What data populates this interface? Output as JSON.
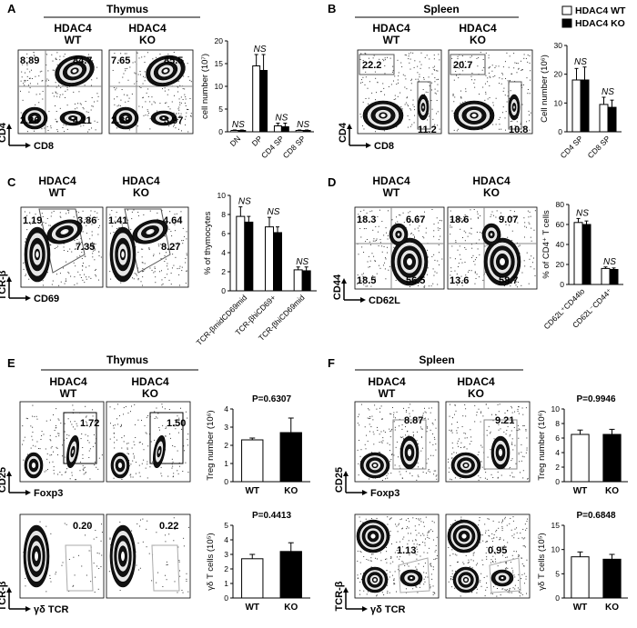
{
  "panels": [
    {
      "letter": "A",
      "title": "Thymus",
      "groups": [
        "HDAC4\nWT",
        "HDAC4\nKO"
      ],
      "axes": {
        "y": "CD4",
        "x": "CD8"
      },
      "plots": [
        {
          "ul": "8.89",
          "ur": "84.7",
          "ll": "2.26",
          "lr": "4.11"
        },
        {
          "ul": "7.65",
          "ur": "85.5",
          "ll": "2.89",
          "lr": "3.97"
        }
      ],
      "chart": {
        "ylabel": "cell number (10⁷)",
        "ylim": [
          0,
          20
        ],
        "yticks": [
          0,
          5,
          10,
          15,
          20
        ],
        "categories": [
          "DN",
          "DP",
          "CD4 SP",
          "CD8 SP"
        ],
        "wt": [
          0.3,
          14.5,
          1.3,
          0.3
        ],
        "ko": [
          0.3,
          13.5,
          1.1,
          0.3
        ],
        "wt_err": [
          0.1,
          2.5,
          0.6,
          0.1
        ],
        "ko_err": [
          0.1,
          3.5,
          0.8,
          0.1
        ],
        "sig": [
          "NS",
          "NS",
          "NS",
          "NS"
        ]
      }
    },
    {
      "letter": "B",
      "title": "Spleen",
      "groups": [
        "HDAC4\nWT",
        "HDAC4\nKO"
      ],
      "axes": {
        "y": "CD4",
        "x": "CD8"
      },
      "plots": [
        {
          "ul": "22.2",
          "lr": "11.2"
        },
        {
          "ul": "20.7",
          "lr": "10.8"
        }
      ],
      "chart": {
        "ylabel": "Cell number (10⁶)",
        "ylim": [
          0,
          30
        ],
        "yticks": [
          0,
          10,
          20,
          30
        ],
        "categories": [
          "CD4 SP",
          "CD8 SP"
        ],
        "wt": [
          18,
          9.5
        ],
        "ko": [
          18,
          8.5
        ],
        "wt_err": [
          4,
          2.5
        ],
        "ko_err": [
          4.5,
          2.5
        ],
        "sig": [
          "NS",
          "NS"
        ]
      }
    },
    {
      "letter": "C",
      "groups": [
        "HDAC4\nWT",
        "HDAC4\nKO"
      ],
      "axes": {
        "y": "TCR-β",
        "x": "CD69"
      },
      "plots": [
        {
          "ul": "1.19",
          "ur": "3.86",
          "mid": "7.35"
        },
        {
          "ul": "1.41",
          "ur": "4.64",
          "mid": "8.27"
        }
      ],
      "chart": {
        "ylabel": "% of thymocytes",
        "ylim": [
          0,
          10
        ],
        "yticks": [
          0,
          2,
          4,
          6,
          8,
          10
        ],
        "categories": [
          "TCR-βmidCD69mid",
          "TCR-βhiCD69+",
          "TCR-βhiCD69mid"
        ],
        "wt": [
          7.8,
          6.7,
          2.2
        ],
        "ko": [
          7.2,
          6.1,
          2.1
        ],
        "wt_err": [
          1.0,
          1.0,
          0.3
        ],
        "ko_err": [
          0.6,
          0.6,
          0.4
        ],
        "sig": [
          "NS",
          "NS",
          "NS"
        ]
      }
    },
    {
      "letter": "D",
      "groups": [
        "HDAC4\nWT",
        "HDAC4\nKO"
      ],
      "axes": {
        "y": "CD44",
        "x": "CD62L"
      },
      "plots": [
        {
          "ul": "18.3",
          "ur": "6.67",
          "ll": "18.5",
          "lr": "56.5"
        },
        {
          "ul": "18.6",
          "ur": "9.07",
          "ll": "13.6",
          "lr": "58.7"
        }
      ],
      "chart": {
        "ylabel": "% of CD4⁺ T cells",
        "ylim": [
          0,
          80
        ],
        "yticks": [
          0,
          20,
          40,
          60,
          80
        ],
        "categories": [
          "CD62L⁺CD44lo",
          "CD62L⁻CD44⁺"
        ],
        "wt": [
          62,
          16
        ],
        "ko": [
          60,
          15
        ],
        "wt_err": [
          4,
          1.5
        ],
        "ko_err": [
          3.5,
          1.5
        ],
        "sig": [
          "NS",
          "NS"
        ]
      }
    },
    {
      "letter": "E",
      "title": "Thymus",
      "groups": [
        "HDAC4\nWT",
        "HDAC4\nKO"
      ],
      "axes_top": {
        "y": "CD25",
        "x": "Foxp3"
      },
      "axes_bottom": {
        "y": "TCR-β",
        "x": "γδ TCR"
      },
      "plots_top": [
        "1.72",
        "1.50"
      ],
      "plots_bottom": [
        "0.20",
        "0.22"
      ],
      "chart_top": {
        "ylabel": "Treg number (10⁶)",
        "ylim": [
          0,
          4
        ],
        "yticks": [
          0,
          1,
          2,
          3,
          4
        ],
        "categories": [
          "WT",
          "KO"
        ],
        "values": [
          2.3,
          2.7
        ],
        "err": [
          0.1,
          0.8
        ],
        "p": "P=0.6307"
      },
      "chart_bottom": {
        "ylabel": "γδ T cells (10⁵)",
        "ylim": [
          0,
          5
        ],
        "yticks": [
          0,
          1,
          2,
          3,
          4,
          5
        ],
        "categories": [
          "WT",
          "KO"
        ],
        "values": [
          2.7,
          3.2
        ],
        "err": [
          0.3,
          0.6
        ],
        "p": "P=0.4413"
      }
    },
    {
      "letter": "F",
      "title": "Spleen",
      "groups": [
        "HDAC4\nWT",
        "HDAC4\nKO"
      ],
      "axes_top": {
        "y": "CD25",
        "x": "Foxp3"
      },
      "axes_bottom": {
        "y": "TCR-β",
        "x": "γδ TCR"
      },
      "plots_top": [
        "8.87",
        "9.21"
      ],
      "plots_bottom": [
        "1.13",
        "0.95"
      ],
      "chart_top": {
        "ylabel": "Treg number (10⁶)",
        "ylim": [
          0,
          10
        ],
        "yticks": [
          0,
          2,
          4,
          6,
          8,
          10
        ],
        "categories": [
          "WT",
          "KO"
        ],
        "values": [
          6.5,
          6.5
        ],
        "err": [
          0.6,
          0.7
        ],
        "p": "P=0.9946"
      },
      "chart_bottom": {
        "ylabel": "γδ T cells (10⁵)",
        "ylim": [
          0,
          15
        ],
        "yticks": [
          0,
          5,
          10,
          15
        ],
        "categories": [
          "WT",
          "KO"
        ],
        "values": [
          8.5,
          8.0
        ],
        "err": [
          1.0,
          1.0
        ],
        "p": "P=0.6848"
      }
    }
  ],
  "legend": {
    "wt": "HDAC4 WT",
    "ko": "HDAC4 KO"
  },
  "colors": {
    "wt": "#ffffff",
    "ko": "#000000",
    "stroke": "#000000",
    "grid": "#888888"
  }
}
